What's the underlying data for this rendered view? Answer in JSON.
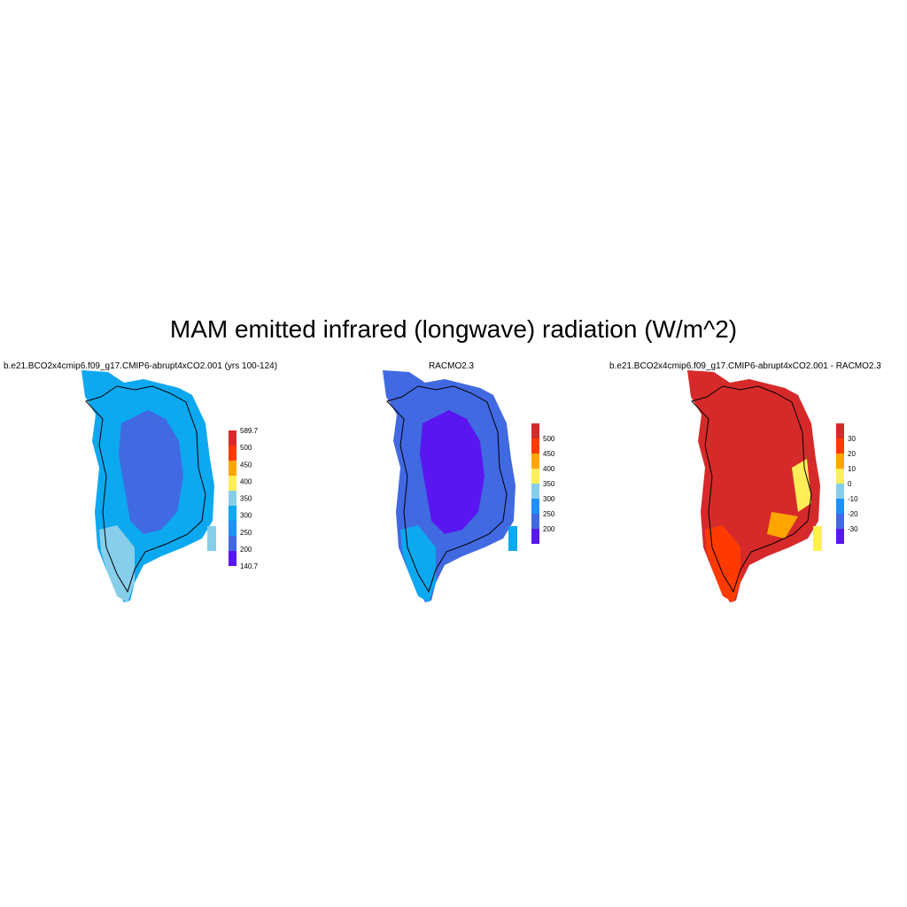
{
  "title": "MAM emitted infrared (longwave) radiation (W/m^2)",
  "panels": [
    {
      "title": "b.e21.BCO2x4cmip6.f09_g17.CMIP6-abrupt4xCO2.001 (yrs 100-124)",
      "colorbar": {
        "colors": [
          "#5a16f0",
          "#4169e1",
          "#1e90ff",
          "#0ca8f0",
          "#87ceeb",
          "#ffee58",
          "#ffa500",
          "#ff3a00",
          "#d62a2a"
        ],
        "labels": [
          "140.7",
          "200",
          "250",
          "300",
          "350",
          "400",
          "450",
          "500",
          "589.7"
        ]
      },
      "region_colors": {
        "interior": "#4169e1",
        "coast": "#0ca8f0",
        "south": "#87ceeb"
      }
    },
    {
      "title": "RACMO2.3",
      "colorbar": {
        "colors": [
          "#5a16f0",
          "#4169e1",
          "#1e90ff",
          "#87ceeb",
          "#ffee58",
          "#ffa500",
          "#ff3a00",
          "#d62a2a"
        ],
        "labels": [
          "200",
          "250",
          "300",
          "350",
          "400",
          "450",
          "500"
        ]
      },
      "region_colors": {
        "interior": "#5a16f0",
        "coast": "#4169e1",
        "south": "#0ca8f0"
      }
    },
    {
      "title": "b.e21.BCO2x4cmip6.f09_g17.CMIP6-abrupt4xCO2.001 - RACMO2.3",
      "colorbar": {
        "colors": [
          "#5a16f0",
          "#4169e1",
          "#1e90ff",
          "#87ceeb",
          "#ffee58",
          "#ffa500",
          "#ff3a00",
          "#d62a2a"
        ],
        "labels": [
          "-30",
          "-20",
          "-10",
          "0",
          "10",
          "20",
          "30"
        ]
      },
      "region_colors": {
        "interior": "#d62a2a",
        "coast": "#d62a2a",
        "south": "#ff3a00"
      }
    }
  ]
}
